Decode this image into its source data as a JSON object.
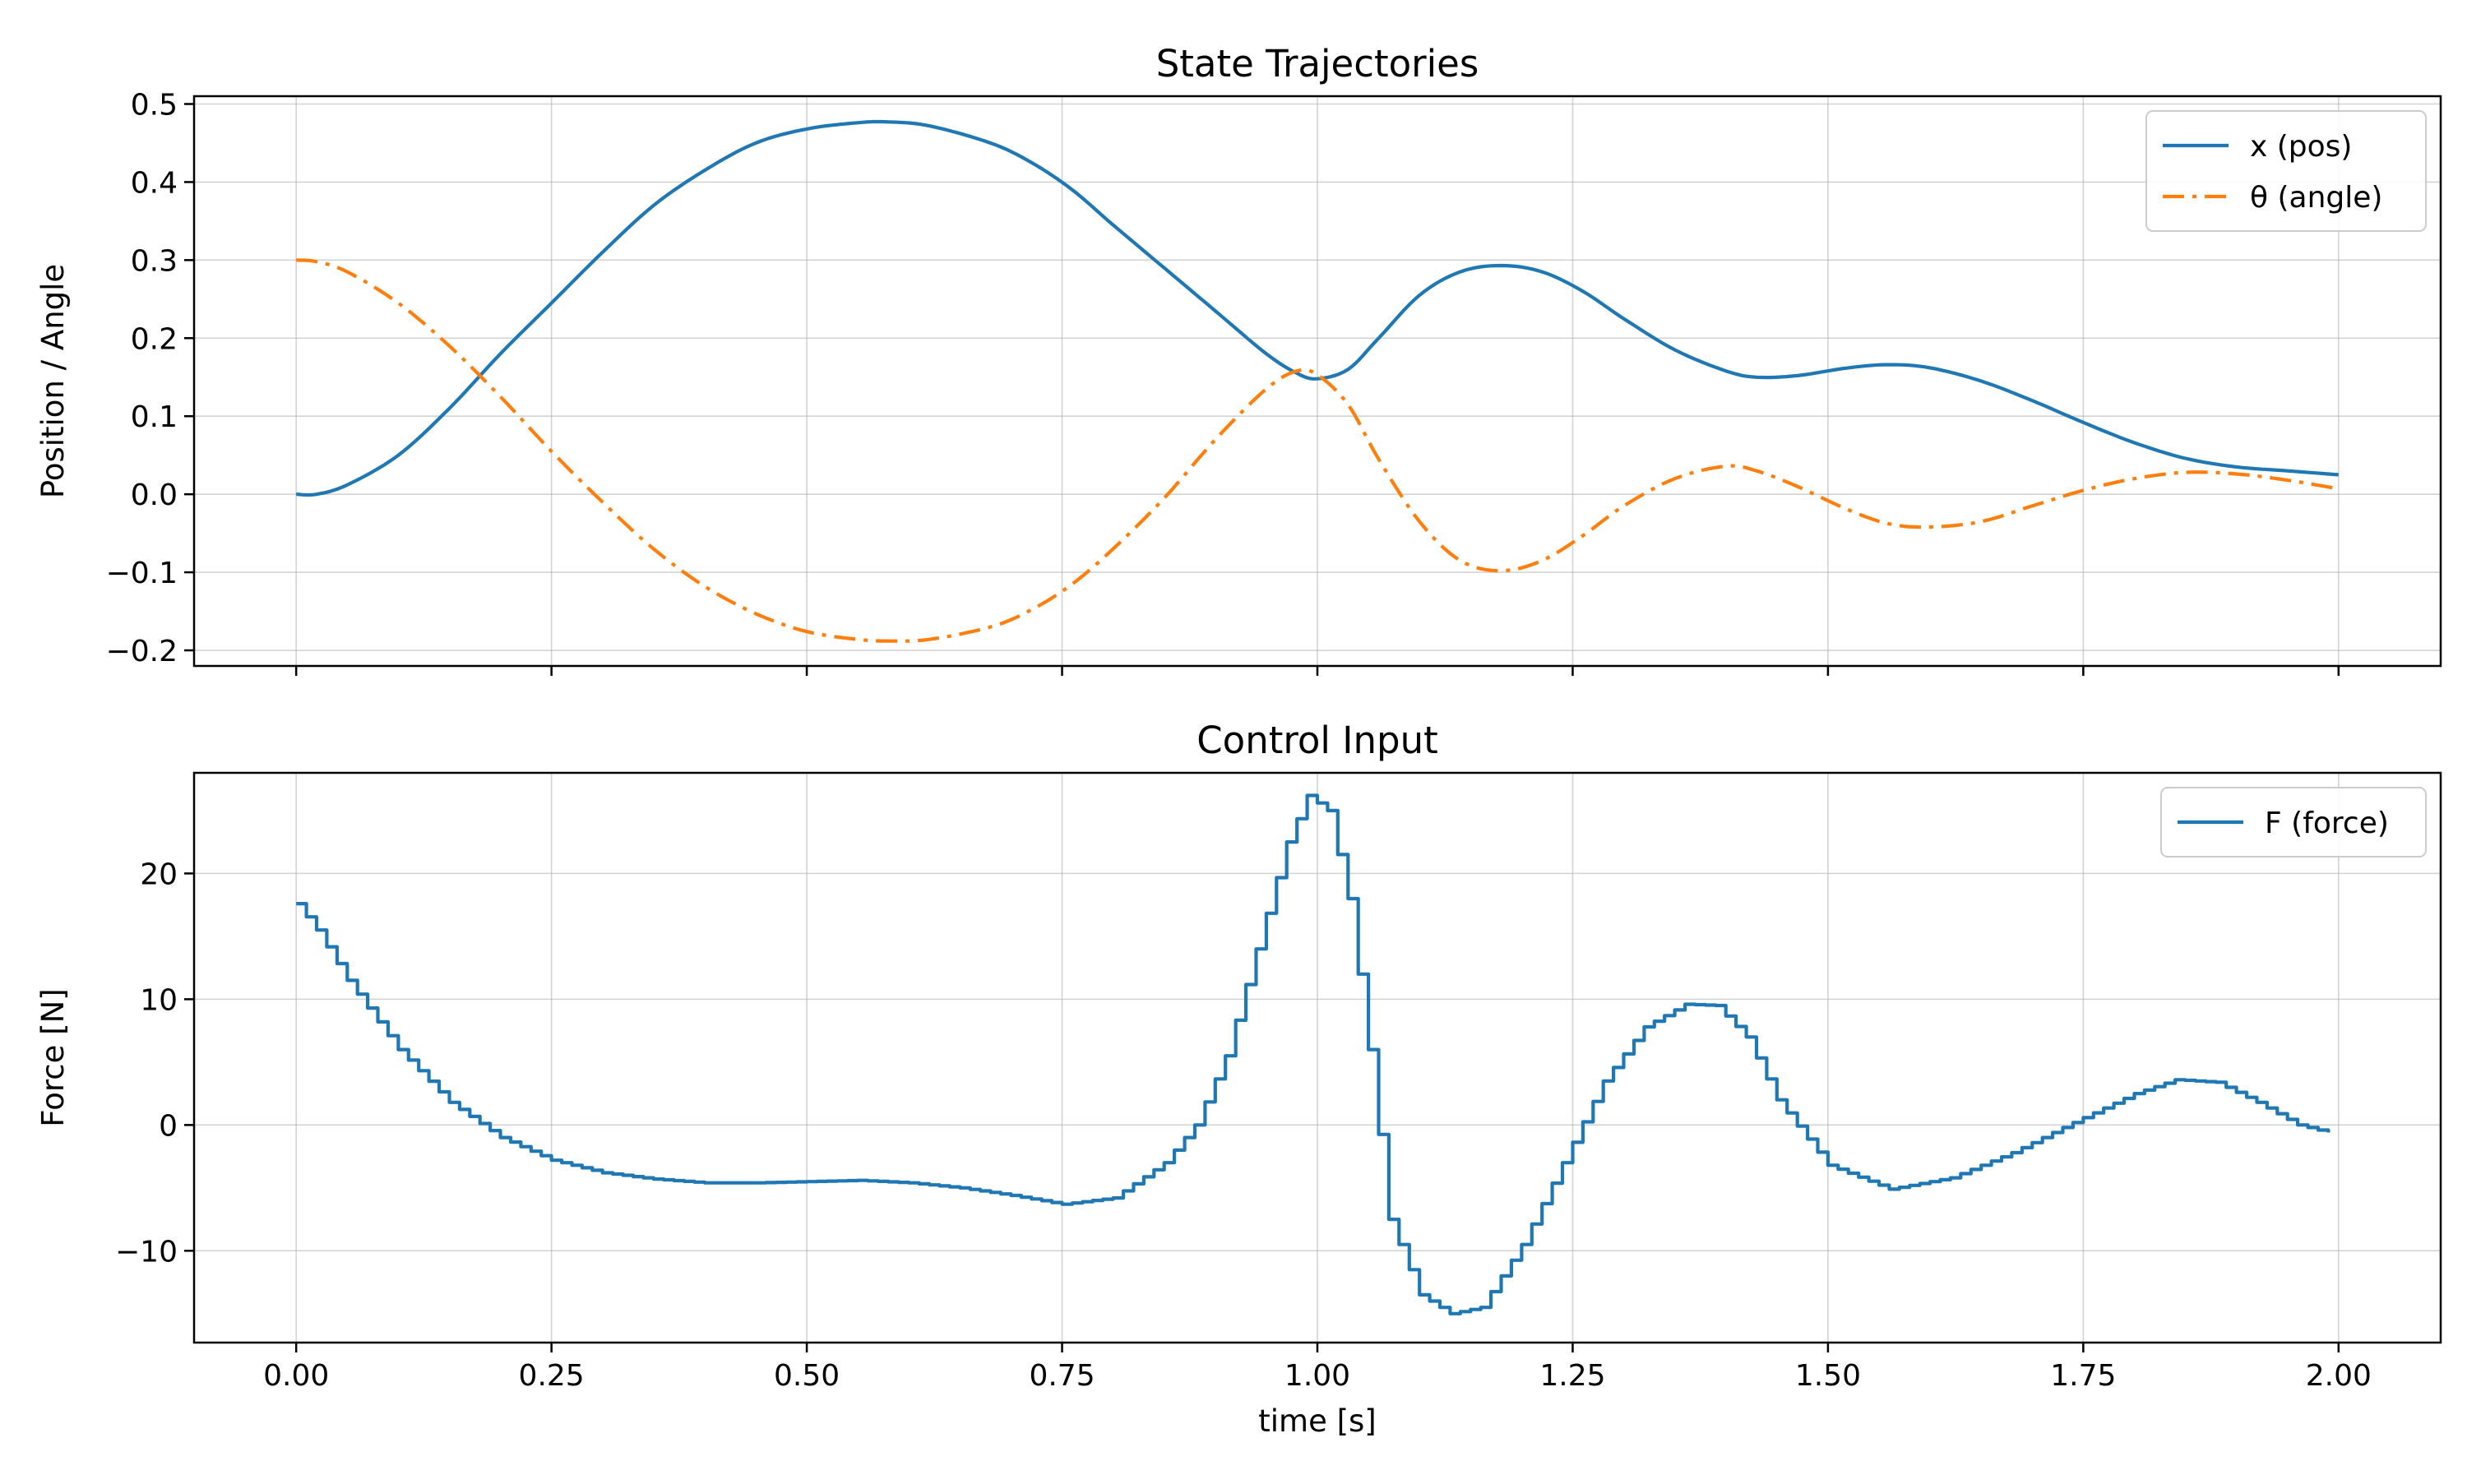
{
  "chart_data": [
    {
      "type": "line",
      "title": "State Trajectories",
      "xlabel": "",
      "ylabel": "Position / Angle",
      "xlim": [
        -0.1,
        2.1
      ],
      "ylim": [
        -0.22,
        0.51
      ],
      "xticks": [
        0.0,
        0.25,
        0.5,
        0.75,
        1.0,
        1.25,
        1.5,
        1.75,
        2.0
      ],
      "xtick_labels": [
        "",
        "",
        "",
        "",
        "",
        "",
        "",
        "",
        ""
      ],
      "yticks": [
        -0.2,
        -0.1,
        0.0,
        0.1,
        0.2,
        0.3,
        0.4,
        0.5
      ],
      "ytick_labels": [
        "−0.2",
        "−0.1",
        "0.0",
        "0.1",
        "0.2",
        "0.3",
        "0.4",
        "0.5"
      ],
      "grid": true,
      "legend_position": "top-right",
      "series": [
        {
          "name": "x (pos)",
          "color": "#1f77b4",
          "style": "solid",
          "x": [
            0.0,
            0.02,
            0.05,
            0.1,
            0.15,
            0.2,
            0.25,
            0.3,
            0.35,
            0.4,
            0.45,
            0.5,
            0.55,
            0.58,
            0.62,
            0.68,
            0.72,
            0.76,
            0.8,
            0.85,
            0.9,
            0.95,
            0.98,
            1.0,
            1.03,
            1.06,
            1.1,
            1.14,
            1.18,
            1.22,
            1.26,
            1.3,
            1.35,
            1.4,
            1.43,
            1.47,
            1.52,
            1.56,
            1.6,
            1.65,
            1.7,
            1.75,
            1.8,
            1.85,
            1.9,
            1.95,
            2.0
          ],
          "y": [
            0.0,
            0.0,
            0.012,
            0.05,
            0.11,
            0.18,
            0.245,
            0.31,
            0.37,
            0.415,
            0.45,
            0.468,
            0.476,
            0.477,
            0.472,
            0.45,
            0.425,
            0.39,
            0.345,
            0.29,
            0.235,
            0.18,
            0.155,
            0.148,
            0.16,
            0.2,
            0.255,
            0.285,
            0.293,
            0.285,
            0.26,
            0.225,
            0.185,
            0.158,
            0.15,
            0.152,
            0.162,
            0.166,
            0.162,
            0.145,
            0.12,
            0.092,
            0.066,
            0.046,
            0.035,
            0.03,
            0.025
          ]
        },
        {
          "name": "θ (angle)",
          "color": "#ff7f0e",
          "style": "dashdot",
          "x": [
            0.0,
            0.02,
            0.05,
            0.1,
            0.15,
            0.2,
            0.25,
            0.3,
            0.35,
            0.4,
            0.45,
            0.5,
            0.55,
            0.58,
            0.62,
            0.68,
            0.72,
            0.76,
            0.8,
            0.85,
            0.9,
            0.95,
            0.98,
            1.0,
            1.03,
            1.06,
            1.1,
            1.14,
            1.18,
            1.22,
            1.26,
            1.3,
            1.35,
            1.4,
            1.43,
            1.47,
            1.52,
            1.56,
            1.6,
            1.65,
            1.7,
            1.75,
            1.8,
            1.85,
            1.9,
            1.95,
            2.0
          ],
          "y": [
            0.3,
            0.298,
            0.285,
            0.245,
            0.19,
            0.125,
            0.055,
            -0.01,
            -0.07,
            -0.118,
            -0.153,
            -0.176,
            -0.186,
            -0.188,
            -0.186,
            -0.17,
            -0.148,
            -0.115,
            -0.07,
            -0.005,
            0.07,
            0.135,
            0.158,
            0.153,
            0.115,
            0.045,
            -0.035,
            -0.085,
            -0.098,
            -0.085,
            -0.053,
            -0.015,
            0.02,
            0.036,
            0.03,
            0.01,
            -0.02,
            -0.038,
            -0.042,
            -0.035,
            -0.015,
            0.005,
            0.02,
            0.028,
            0.026,
            0.018,
            0.007
          ]
        }
      ]
    },
    {
      "type": "line",
      "title": "Control Input",
      "xlabel": "time [s]",
      "ylabel": "Force [N]",
      "xlim": [
        -0.1,
        2.1
      ],
      "ylim": [
        -17.3,
        28.0
      ],
      "xticks": [
        0.0,
        0.25,
        0.5,
        0.75,
        1.0,
        1.25,
        1.5,
        1.75,
        2.0
      ],
      "xtick_labels": [
        "0.00",
        "0.25",
        "0.50",
        "0.75",
        "1.00",
        "1.25",
        "1.50",
        "1.75",
        "2.00"
      ],
      "yticks": [
        -10,
        0,
        10,
        20
      ],
      "ytick_labels": [
        "−10",
        "0",
        "10",
        "20"
      ],
      "grid": true,
      "legend_position": "top-right",
      "step_dt": 0.01,
      "series": [
        {
          "name": "F (force)",
          "color": "#1f77b4",
          "style": "steps-post",
          "x": [
            0.0,
            0.02,
            0.05,
            0.1,
            0.15,
            0.2,
            0.25,
            0.3,
            0.35,
            0.4,
            0.45,
            0.5,
            0.55,
            0.6,
            0.65,
            0.7,
            0.75,
            0.8,
            0.85,
            0.88,
            0.91,
            0.94,
            0.97,
            0.99,
            1.01,
            1.03,
            1.05,
            1.07,
            1.1,
            1.13,
            1.16,
            1.2,
            1.24,
            1.28,
            1.32,
            1.36,
            1.39,
            1.42,
            1.45,
            1.5,
            1.56,
            1.62,
            1.68,
            1.74,
            1.8,
            1.84,
            1.88,
            1.92,
            1.96,
            1.99
          ],
          "y": [
            17.6,
            15.5,
            11.5,
            6.0,
            1.8,
            -1.0,
            -2.8,
            -3.8,
            -4.3,
            -4.6,
            -4.6,
            -4.5,
            -4.4,
            -4.6,
            -5.0,
            -5.6,
            -6.3,
            -5.8,
            -3.0,
            0.0,
            5.5,
            14.0,
            22.5,
            26.2,
            25.0,
            18.0,
            6.0,
            -7.5,
            -13.5,
            -15.0,
            -14.5,
            -9.5,
            -3.0,
            3.5,
            7.8,
            9.6,
            9.5,
            7.0,
            2.0,
            -3.2,
            -5.1,
            -4.2,
            -2.2,
            0.2,
            2.5,
            3.6,
            3.4,
            1.8,
            0.0,
            -0.6
          ]
        }
      ]
    }
  ]
}
